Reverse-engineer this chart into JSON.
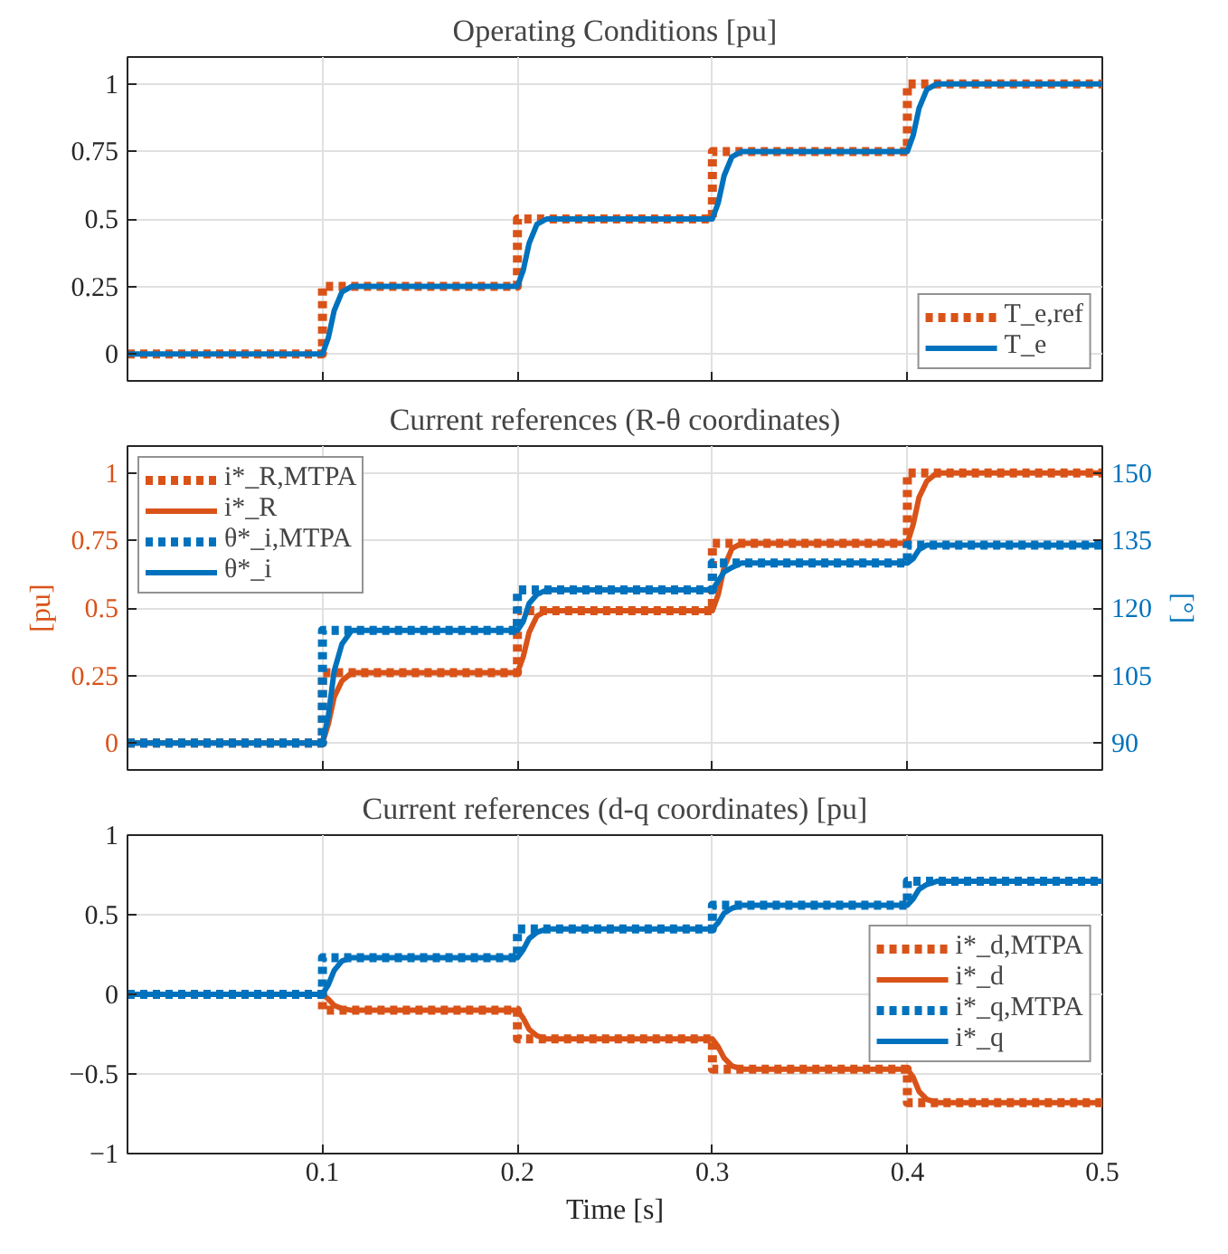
{
  "chart_data": [
    {
      "type": "line",
      "title": "Operating Conditions [pu]",
      "xlim": [
        0,
        0.5
      ],
      "xticks": [
        {
          "value": 0.1,
          "label": null
        },
        {
          "value": 0.2,
          "label": null
        },
        {
          "value": 0.3,
          "label": null
        },
        {
          "value": 0.4,
          "label": null
        },
        {
          "value": 0.5,
          "label": null
        }
      ],
      "ylim": [
        -0.1,
        1.1
      ],
      "yticks": [
        0,
        0.25,
        0.5,
        0.75,
        1
      ],
      "tick_labels": "y",
      "grid": true,
      "legend": "bottom right",
      "series": [
        {
          "name": "T_e,ref",
          "color": "#d95319",
          "line_style": "dotted",
          "x": [
            0,
            0.1,
            0.1,
            0.2,
            0.2,
            0.3,
            0.3,
            0.4,
            0.4,
            0.5
          ],
          "values": [
            0,
            0,
            0.25,
            0.25,
            0.5,
            0.5,
            0.75,
            0.75,
            1,
            1
          ]
        },
        {
          "name": "T_e",
          "color": "#0072bd",
          "line_style": "solid",
          "x": [
            0,
            0.1,
            0.103,
            0.106,
            0.11,
            0.115,
            0.2,
            0.203,
            0.206,
            0.21,
            0.215,
            0.3,
            0.303,
            0.306,
            0.31,
            0.315,
            0.4,
            0.403,
            0.406,
            0.41,
            0.415,
            0.5
          ],
          "values": [
            0,
            0,
            0.06,
            0.16,
            0.23,
            0.25,
            0.25,
            0.31,
            0.41,
            0.48,
            0.5,
            0.5,
            0.56,
            0.66,
            0.73,
            0.75,
            0.75,
            0.81,
            0.91,
            0.98,
            1,
            1
          ]
        }
      ]
    },
    {
      "type": "line",
      "title": "Current references (R-θ coordinates)",
      "ylabel": "[pu]",
      "y2label": "[°]",
      "xlim": [
        0,
        0.5
      ],
      "xticks": [
        {
          "value": 0.1,
          "label": null
        },
        {
          "value": 0.2,
          "label": null
        },
        {
          "value": 0.3,
          "label": null
        },
        {
          "value": 0.4,
          "label": null
        },
        {
          "value": 0.5,
          "label": null
        }
      ],
      "ylim": [
        -0.1,
        1.1
      ],
      "yticks": [
        0,
        0.25,
        0.5,
        0.75,
        1
      ],
      "y2lim": [
        84,
        156
      ],
      "y2ticks": [
        90,
        105,
        120,
        135,
        150
      ],
      "tick_labels": "y",
      "grid": true,
      "legend": "top left",
      "series": [
        {
          "name": "i*_R,MTPA",
          "color": "#d95319",
          "line_style": "dotted",
          "x": [
            0,
            0.1,
            0.1,
            0.2,
            0.2,
            0.3,
            0.3,
            0.4,
            0.4,
            0.5
          ],
          "values": [
            0,
            0,
            0.26,
            0.26,
            0.49,
            0.49,
            0.74,
            0.74,
            1,
            1
          ]
        },
        {
          "name": "i*_R",
          "color": "#d95319",
          "line_style": "solid",
          "x": [
            0,
            0.1,
            0.103,
            0.106,
            0.11,
            0.115,
            0.2,
            0.203,
            0.206,
            0.21,
            0.215,
            0.3,
            0.303,
            0.306,
            0.31,
            0.315,
            0.4,
            0.403,
            0.406,
            0.41,
            0.415,
            0.5
          ],
          "values": [
            0,
            0,
            0.07,
            0.17,
            0.23,
            0.26,
            0.26,
            0.32,
            0.41,
            0.47,
            0.49,
            0.49,
            0.55,
            0.65,
            0.72,
            0.74,
            0.74,
            0.81,
            0.91,
            0.97,
            1,
            1
          ]
        },
        {
          "name": "θ*_i,MTPA",
          "color": "#0072bd",
          "line_style": "dotted",
          "axis": "y2",
          "x": [
            0,
            0.1,
            0.1,
            0.2,
            0.2,
            0.3,
            0.3,
            0.4,
            0.4,
            0.5
          ],
          "values": [
            90,
            90,
            115,
            115,
            124,
            124,
            130,
            130,
            134,
            134
          ]
        },
        {
          "name": "θ*_i",
          "color": "#0072bd",
          "line_style": "solid",
          "axis": "y2",
          "x": [
            0,
            0.1,
            0.103,
            0.106,
            0.11,
            0.115,
            0.2,
            0.203,
            0.206,
            0.21,
            0.215,
            0.3,
            0.303,
            0.306,
            0.31,
            0.315,
            0.4,
            0.403,
            0.406,
            0.41,
            0.415,
            0.5
          ],
          "values": [
            90,
            90,
            96,
            106,
            112,
            115,
            115,
            117,
            121,
            123,
            124,
            124,
            126,
            128,
            129,
            130,
            130,
            131,
            133,
            134,
            134,
            134
          ]
        }
      ]
    },
    {
      "type": "line",
      "title": "Current references (d-q coordinates) [pu]",
      "xlabel": "Time [s]",
      "xlim": [
        0,
        0.5
      ],
      "xticks": [
        0.1,
        0.2,
        0.3,
        0.4,
        0.5
      ],
      "ylim": [
        -1,
        1
      ],
      "yticks": [
        -1,
        -0.5,
        0,
        0.5,
        1
      ],
      "grid": true,
      "legend": "right",
      "series": [
        {
          "name": "i*_d,MTPA",
          "color": "#d95319",
          "line_style": "dotted",
          "x": [
            0,
            0.1,
            0.1,
            0.2,
            0.2,
            0.3,
            0.3,
            0.4,
            0.4,
            0.5
          ],
          "values": [
            0,
            0,
            -0.1,
            -0.1,
            -0.28,
            -0.28,
            -0.47,
            -0.47,
            -0.68,
            -0.68
          ]
        },
        {
          "name": "i*_d",
          "color": "#d95319",
          "line_style": "solid",
          "x": [
            0,
            0.1,
            0.103,
            0.106,
            0.11,
            0.115,
            0.2,
            0.203,
            0.206,
            0.21,
            0.215,
            0.3,
            0.303,
            0.306,
            0.31,
            0.315,
            0.4,
            0.403,
            0.406,
            0.41,
            0.415,
            0.5
          ],
          "values": [
            0,
            0,
            -0.03,
            -0.07,
            -0.09,
            -0.1,
            -0.1,
            -0.15,
            -0.22,
            -0.26,
            -0.28,
            -0.28,
            -0.33,
            -0.4,
            -0.45,
            -0.47,
            -0.47,
            -0.52,
            -0.61,
            -0.66,
            -0.68,
            -0.68
          ]
        },
        {
          "name": "i*_q,MTPA",
          "color": "#0072bd",
          "line_style": "dotted",
          "x": [
            0,
            0.1,
            0.1,
            0.2,
            0.2,
            0.3,
            0.3,
            0.4,
            0.4,
            0.5
          ],
          "values": [
            0,
            0,
            0.23,
            0.23,
            0.41,
            0.41,
            0.56,
            0.56,
            0.71,
            0.71
          ]
        },
        {
          "name": "i*_q",
          "color": "#0072bd",
          "line_style": "solid",
          "x": [
            0,
            0.1,
            0.103,
            0.106,
            0.11,
            0.115,
            0.2,
            0.203,
            0.206,
            0.21,
            0.215,
            0.3,
            0.303,
            0.306,
            0.31,
            0.315,
            0.4,
            0.403,
            0.406,
            0.41,
            0.415,
            0.5
          ],
          "values": [
            0,
            0,
            0.06,
            0.15,
            0.21,
            0.23,
            0.23,
            0.28,
            0.35,
            0.39,
            0.41,
            0.41,
            0.45,
            0.51,
            0.54,
            0.56,
            0.56,
            0.6,
            0.66,
            0.69,
            0.71,
            0.71
          ]
        }
      ]
    }
  ]
}
